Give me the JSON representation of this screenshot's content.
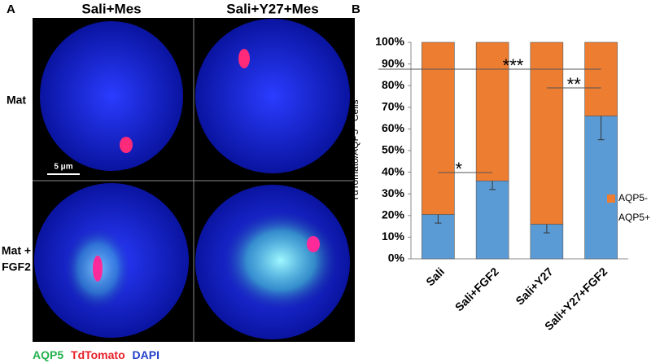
{
  "panel_a": {
    "label": "A",
    "columns": [
      "Sali+Mes",
      "Sali+Y27+Mes"
    ],
    "rows": [
      [
        "Mat"
      ],
      [
        "Mat +",
        "FGF2"
      ]
    ],
    "scale_bar": "5 μm",
    "stain_legend": [
      "AQP5",
      "TdTomato",
      "DAPI"
    ]
  },
  "chart_data": {
    "type": "bar",
    "stacked": true,
    "panel_label": "B",
    "ylabel": "TdTomato/AQP5⁺ Cells",
    "categories": [
      "Sali",
      "Sali+FGF2",
      "Sali+Y27",
      "Sali+Y27+FGF2"
    ],
    "series": [
      {
        "name": "AQP5+",
        "color": "#5b9bd5",
        "values": [
          20.5,
          36,
          16,
          66
        ],
        "errors": [
          4,
          4,
          4,
          11
        ]
      },
      {
        "name": "AQP5-",
        "color": "#ed7d31",
        "values": [
          79.5,
          64,
          84,
          34
        ]
      }
    ],
    "ylim": [
      0,
      100
    ],
    "yticks": [
      {
        "value": 0,
        "label": "0%"
      },
      {
        "value": 10,
        "label": "10%"
      },
      {
        "value": 20,
        "label": "20%"
      },
      {
        "value": 30,
        "label": "30%"
      },
      {
        "value": 40,
        "label": "40%"
      },
      {
        "value": 50,
        "label": "50%"
      },
      {
        "value": 60,
        "label": "60%"
      },
      {
        "value": 70,
        "label": "70%"
      },
      {
        "value": 80,
        "label": "80%"
      },
      {
        "value": 90,
        "label": "90%"
      },
      {
        "value": 100,
        "label": "100%"
      }
    ],
    "grid": false,
    "legend": "right",
    "annotations": [
      "*",
      "***",
      "**"
    ]
  }
}
